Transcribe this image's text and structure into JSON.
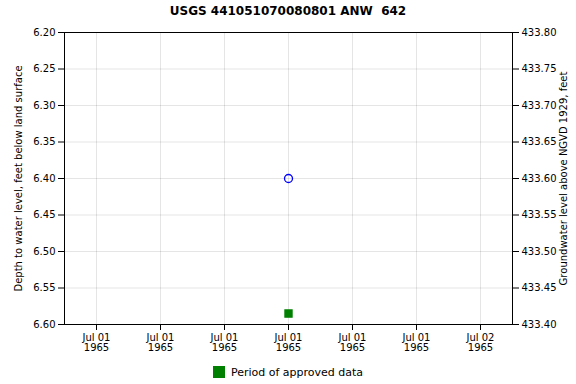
{
  "chart_data": {
    "type": "scatter",
    "title": "USGS 441051070080801 ANW  642",
    "categories": [
      "Jul 01\n1965",
      "Jul 01\n1965",
      "Jul 01\n1965",
      "Jul 01\n1965",
      "Jul 01\n1965",
      "Jul 01\n1965",
      "Jul 02\n1965"
    ],
    "series": [
      {
        "color": "blue",
        "marker": "open_circle",
        "values": [
          null,
          null,
          null,
          6.4,
          null,
          null,
          null
        ]
      },
      {
        "name": "Period of approved data",
        "color": "green",
        "marker": "square",
        "values": [
          null,
          null,
          null,
          6.585,
          null,
          null,
          null
        ]
      }
    ],
    "ylabel": "Depth to water level, feet below land surface",
    "y2label": "Groundwater level above NGVD 1929, feet",
    "ylim": [
      6.6,
      6.2
    ],
    "yticks": [
      {
        "value": 6.2,
        "label": "6.20"
      },
      6.25,
      {
        "value": 6.3,
        "label": "6.30"
      },
      6.35,
      {
        "value": 6.4,
        "label": "6.40"
      },
      6.45,
      {
        "value": 6.5,
        "label": "6.50"
      },
      6.55,
      {
        "value": 6.6,
        "label": "6.60"
      }
    ],
    "y2lim": [
      433.4,
      433.8
    ],
    "y2ticks": [
      {
        "value": 433.8,
        "label": "433.80"
      },
      433.75,
      {
        "value": 433.7,
        "label": "433.70"
      },
      433.65,
      {
        "value": 433.6,
        "label": "433.60"
      },
      433.55,
      {
        "value": 433.5,
        "label": "433.50"
      },
      433.45,
      {
        "value": 433.4,
        "label": "433.40"
      }
    ],
    "grid": true,
    "legend": "bottom"
  }
}
